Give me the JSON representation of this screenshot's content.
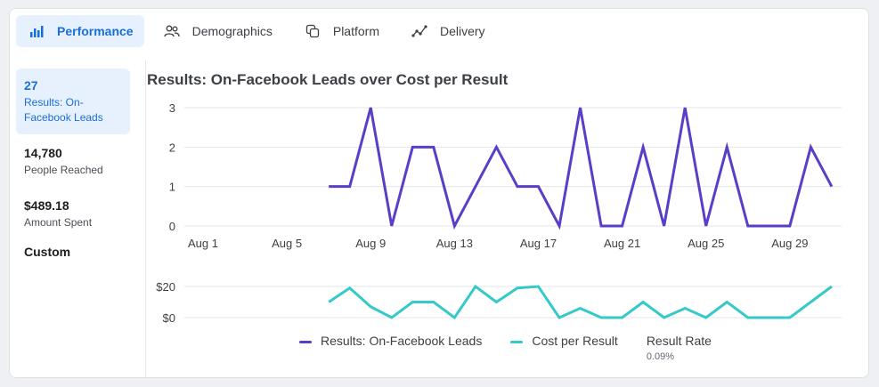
{
  "tabs": [
    {
      "label": "Performance",
      "icon": "bar-chart-icon",
      "active": true
    },
    {
      "label": "Demographics",
      "icon": "people-icon",
      "active": false
    },
    {
      "label": "Platform",
      "icon": "stacked-squares-icon",
      "active": false
    },
    {
      "label": "Delivery",
      "icon": "trend-line-icon",
      "active": false
    }
  ],
  "sidebar": {
    "metrics": [
      {
        "value": "27",
        "label": "Results: On-Facebook Leads",
        "active": true
      },
      {
        "value": "14,780",
        "label": "People Reached",
        "active": false
      },
      {
        "value": "$489.18",
        "label": "Amount Spent",
        "active": false
      }
    ],
    "custom": "Custom"
  },
  "chart_title": "Results: On-Facebook Leads over Cost per Result",
  "colors": {
    "accent": "#1a6ed8",
    "leads": "#5a3ec8",
    "cost": "#35c9c9"
  },
  "legend": {
    "leads": "Results: On-Facebook Leads",
    "cost": "Cost per Result",
    "result_rate_label": "Result Rate",
    "result_rate_value": "0.09%"
  },
  "chart_data": [
    {
      "type": "line",
      "title": "Results: On-Facebook Leads over Cost per Result",
      "x_ticks": [
        "Aug 1",
        "Aug 5",
        "Aug 9",
        "Aug 13",
        "Aug 17",
        "Aug 21",
        "Aug 25",
        "Aug 29"
      ],
      "y_ticks": [
        "0",
        "1",
        "2",
        "3"
      ],
      "ylim": [
        0,
        3
      ],
      "grid": true,
      "x": [
        "Aug 7",
        "Aug 8",
        "Aug 9",
        "Aug 10",
        "Aug 11",
        "Aug 12",
        "Aug 13",
        "Aug 14",
        "Aug 15",
        "Aug 16",
        "Aug 17",
        "Aug 18",
        "Aug 19",
        "Aug 20",
        "Aug 21",
        "Aug 22",
        "Aug 23",
        "Aug 24",
        "Aug 25",
        "Aug 26",
        "Aug 27",
        "Aug 28",
        "Aug 29",
        "Aug 30",
        "Aug 31"
      ],
      "series": [
        {
          "name": "Results: On-Facebook Leads",
          "values": [
            1,
            1,
            3,
            0,
            2,
            2,
            0,
            1,
            2,
            1,
            1,
            0,
            3,
            0,
            0,
            2,
            0,
            3,
            0,
            2,
            0,
            0,
            0,
            2,
            1
          ]
        }
      ]
    },
    {
      "type": "line",
      "y_ticks": [
        "$0",
        "$20"
      ],
      "ylim": [
        0,
        20
      ],
      "grid": true,
      "x": [
        "Aug 7",
        "Aug 8",
        "Aug 9",
        "Aug 10",
        "Aug 11",
        "Aug 12",
        "Aug 13",
        "Aug 14",
        "Aug 15",
        "Aug 16",
        "Aug 17",
        "Aug 18",
        "Aug 19",
        "Aug 20",
        "Aug 21",
        "Aug 22",
        "Aug 23",
        "Aug 24",
        "Aug 25",
        "Aug 26",
        "Aug 27",
        "Aug 28",
        "Aug 29",
        "Aug 30",
        "Aug 31"
      ],
      "series": [
        {
          "name": "Cost per Result",
          "values": [
            10,
            19,
            7,
            0,
            10,
            10,
            0,
            20,
            10,
            19,
            20,
            0,
            6,
            0,
            0,
            10,
            0,
            6,
            0,
            10,
            0,
            0,
            0,
            10,
            20
          ]
        }
      ]
    }
  ]
}
